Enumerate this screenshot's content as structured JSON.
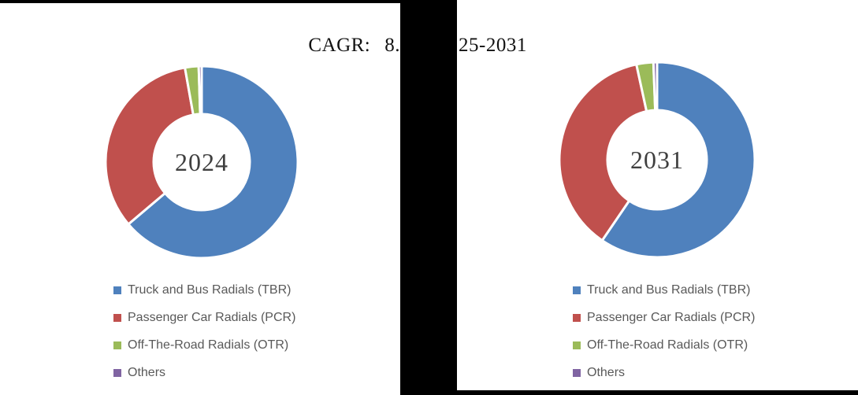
{
  "header": {
    "cagr_label": "CAGR:",
    "cagr_value_visible": "8.",
    "period_visible": "25-2031"
  },
  "chart_data": [
    {
      "type": "pie",
      "subtype": "donut",
      "center_label": "2024",
      "categories": [
        "Truck and Bus Radials (TBR)",
        "Passenger Car Radials (PCR)",
        "Off-The-Road Radials (OTR)",
        "Others"
      ],
      "values": [
        63.8,
        33.4,
        2.3,
        0.5
      ],
      "value_unit": "% (estimated from slice angles)",
      "colors": [
        "#4F81BD",
        "#C0504D",
        "#9BBB59",
        "#8064A2"
      ],
      "start_angle_deg": 0,
      "direction": "clockwise",
      "legend_position": "below-left"
    },
    {
      "type": "pie",
      "subtype": "donut",
      "center_label": "2031",
      "categories": [
        "Truck and Bus Radials (TBR)",
        "Passenger Car Radials (PCR)",
        "Off-The-Road Radials (OTR)",
        "Others"
      ],
      "values": [
        59.5,
        37.1,
        2.8,
        0.6
      ],
      "value_unit": "% (estimated from slice angles)",
      "colors": [
        "#4F81BD",
        "#C0504D",
        "#9BBB59",
        "#8064A2"
      ],
      "start_angle_deg": 0,
      "direction": "clockwise",
      "legend_position": "below-right"
    }
  ]
}
